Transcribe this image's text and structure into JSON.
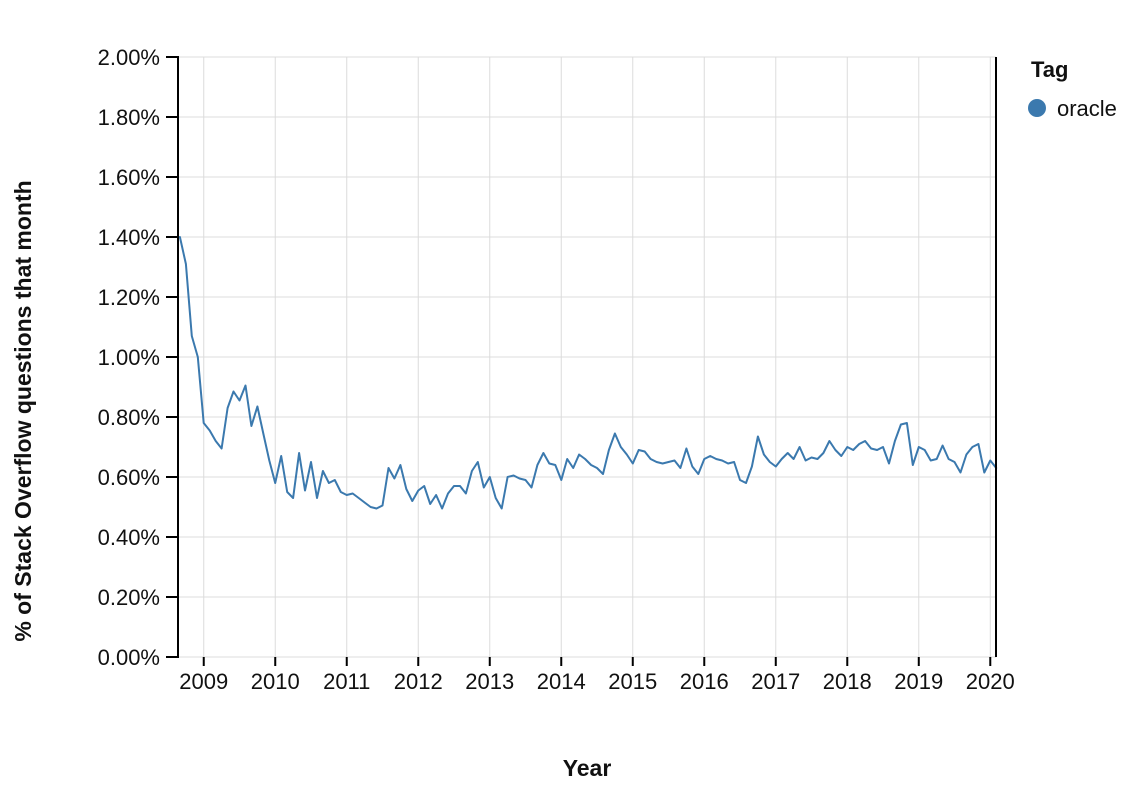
{
  "chart": {
    "y_title": "% of Stack Overflow questions that month",
    "x_title": "Year"
  },
  "legend": {
    "title": "Tag",
    "items": [
      {
        "label": "oracle",
        "color": "#3b79ae"
      }
    ]
  },
  "chart_data": {
    "type": "line",
    "title": "",
    "xlabel": "Year",
    "ylabel": "% of Stack Overflow questions that month",
    "unit": "percent of Stack Overflow questions per month",
    "grid": true,
    "legend_position": "top-right",
    "ylim": [
      0,
      2.0
    ],
    "xlim": [
      2008.64,
      2020.08
    ],
    "y_ticks": [
      {
        "value": 0.0,
        "label": "0.00%"
      },
      {
        "value": 0.2,
        "label": "0.20%"
      },
      {
        "value": 0.4,
        "label": "0.40%"
      },
      {
        "value": 0.6,
        "label": "0.60%"
      },
      {
        "value": 0.8,
        "label": "0.80%"
      },
      {
        "value": 1.0,
        "label": "1.00%"
      },
      {
        "value": 1.2,
        "label": "1.20%"
      },
      {
        "value": 1.4,
        "label": "1.40%"
      },
      {
        "value": 1.6,
        "label": "1.60%"
      },
      {
        "value": 1.8,
        "label": "1.80%"
      },
      {
        "value": 2.0,
        "label": "2.00%"
      }
    ],
    "x_ticks": [
      {
        "value": 2009,
        "label": "2009"
      },
      {
        "value": 2010,
        "label": "2010"
      },
      {
        "value": 2011,
        "label": "2011"
      },
      {
        "value": 2012,
        "label": "2012"
      },
      {
        "value": 2013,
        "label": "2013"
      },
      {
        "value": 2014,
        "label": "2014"
      },
      {
        "value": 2015,
        "label": "2015"
      },
      {
        "value": 2016,
        "label": "2016"
      },
      {
        "value": 2017,
        "label": "2017"
      },
      {
        "value": 2018,
        "label": "2018"
      },
      {
        "value": 2019,
        "label": "2019"
      },
      {
        "value": 2020,
        "label": "2020"
      }
    ],
    "series": [
      {
        "name": "oracle",
        "color": "#3b79ae",
        "frequency": "monthly",
        "start": "2008-09",
        "values_unit": "%",
        "values": [
          1.4,
          1.31,
          1.07,
          1.0,
          0.78,
          0.755,
          0.72,
          0.695,
          0.83,
          0.885,
          0.855,
          0.905,
          0.77,
          0.835,
          0.745,
          0.655,
          0.58,
          0.67,
          0.55,
          0.53,
          0.68,
          0.555,
          0.65,
          0.53,
          0.62,
          0.58,
          0.59,
          0.55,
          0.54,
          0.545,
          0.53,
          0.515,
          0.5,
          0.495,
          0.505,
          0.63,
          0.595,
          0.64,
          0.56,
          0.52,
          0.555,
          0.57,
          0.51,
          0.54,
          0.495,
          0.545,
          0.57,
          0.57,
          0.545,
          0.62,
          0.65,
          0.565,
          0.6,
          0.53,
          0.495,
          0.6,
          0.605,
          0.595,
          0.59,
          0.565,
          0.64,
          0.68,
          0.645,
          0.64,
          0.59,
          0.66,
          0.63,
          0.675,
          0.66,
          0.64,
          0.63,
          0.61,
          0.69,
          0.745,
          0.7,
          0.675,
          0.645,
          0.69,
          0.685,
          0.66,
          0.65,
          0.645,
          0.65,
          0.655,
          0.63,
          0.695,
          0.635,
          0.61,
          0.66,
          0.67,
          0.66,
          0.655,
          0.645,
          0.65,
          0.59,
          0.58,
          0.635,
          0.735,
          0.675,
          0.65,
          0.635,
          0.66,
          0.68,
          0.66,
          0.7,
          0.655,
          0.665,
          0.66,
          0.68,
          0.72,
          0.69,
          0.67,
          0.7,
          0.69,
          0.71,
          0.72,
          0.695,
          0.69,
          0.7,
          0.645,
          0.72,
          0.775,
          0.78,
          0.64,
          0.7,
          0.69,
          0.655,
          0.66,
          0.705,
          0.66,
          0.65,
          0.615,
          0.675,
          0.7,
          0.71,
          0.615,
          0.655,
          0.63
        ]
      }
    ],
    "annotations": {
      "domain_end_line_x": 2020.084
    },
    "colors": {
      "line": "#3b79ae",
      "grid": "#dcdcdc",
      "axis": "#000000",
      "background": "#ffffff"
    }
  }
}
